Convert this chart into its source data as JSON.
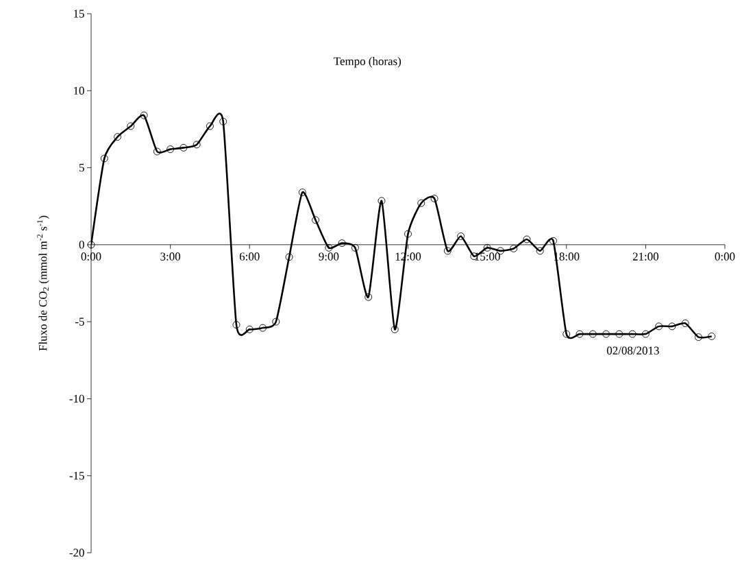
{
  "chart_data": {
    "type": "line",
    "xlabel": "Tempo (horas)",
    "ylabel": "Fluxo de CO$_{2}$ (mmol m$^{-2}$ s$^{-1}$)",
    "annotations": [
      "02/08/2013"
    ],
    "x": [
      0,
      0.5,
      1,
      1.5,
      2,
      2.5,
      3,
      3.5,
      4,
      4.5,
      5,
      5.5,
      6,
      6.5,
      7,
      7.5,
      8,
      8.5,
      9,
      9.5,
      10,
      10.5,
      11,
      11.5,
      12,
      12.5,
      13,
      13.5,
      14,
      14.5,
      15,
      15.5,
      16,
      16.5,
      17,
      17.5,
      18,
      18.5,
      19,
      19.5,
      20,
      20.5,
      21,
      21.5,
      22,
      22.5,
      23,
      23.5
    ],
    "series": [
      {
        "color": "#000000",
        "values": [
          0,
          5.6,
          7.0,
          7.7,
          8.4,
          6.05,
          6.2,
          6.3,
          6.5,
          7.7,
          8.0,
          -5.2,
          -5.5,
          -5.4,
          -5.0,
          -0.8,
          3.4,
          1.6,
          -0.2,
          0.1,
          -0.2,
          -3.4,
          2.85,
          -5.5,
          0.7,
          2.7,
          3.0,
          -0.4,
          0.55,
          -0.75,
          -0.2,
          -0.4,
          -0.25,
          0.35,
          -0.4,
          0.25,
          -5.8,
          -5.8,
          -5.8,
          -5.8,
          -5.8,
          -5.8,
          -5.8,
          -5.3,
          -5.3,
          -5.1,
          -6.0,
          -5.95
        ]
      }
    ],
    "xlim": [
      0,
      24
    ],
    "xticks": [
      {
        "value": 0,
        "label": "0:00"
      },
      {
        "value": 3,
        "label": "3:00"
      },
      {
        "value": 6,
        "label": "6:00"
      },
      {
        "value": 9,
        "label": "9:00"
      },
      {
        "value": 12,
        "label": "12:00"
      },
      {
        "value": 15,
        "label": "15:00"
      },
      {
        "value": 18,
        "label": "18:00"
      },
      {
        "value": 21,
        "label": "21:00"
      },
      {
        "value": 24,
        "label": "0:00"
      }
    ],
    "ylim": [
      -20,
      15
    ],
    "yticks": [
      -20,
      -15,
      -10,
      -5,
      0,
      5,
      10,
      15
    ],
    "grid": false,
    "marker": "circle",
    "line_style": "solid"
  }
}
